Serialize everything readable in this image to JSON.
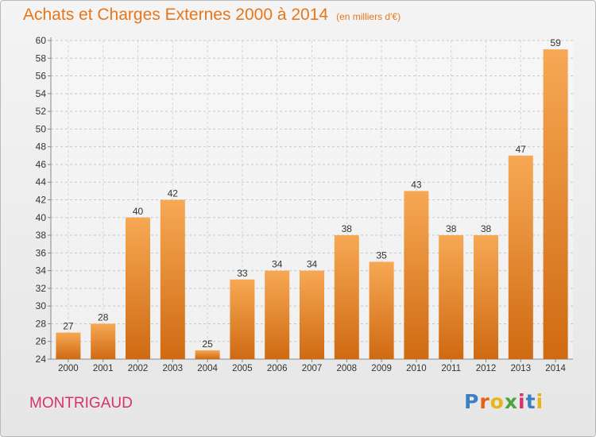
{
  "header": {
    "title": "Achats et Charges Externes 2000 à 2014",
    "unit": "(en milliers d'€)"
  },
  "footer": {
    "town": "MONTRIGAUD",
    "logo": "Proxiti",
    "logo_colors": [
      "#3d7fc4",
      "#e85f16",
      "#e8b417",
      "#4aa63a",
      "#d6336c",
      "#3d7fc4",
      "#e8b417"
    ]
  },
  "colors": {
    "bar_top": "#f7a854",
    "bar_bottom": "#cf6a12",
    "title": "#e8761a",
    "axis_text": "#333333"
  },
  "chart_data": {
    "type": "bar",
    "categories": [
      "2000",
      "2001",
      "2002",
      "2003",
      "2004",
      "2005",
      "2006",
      "2007",
      "2008",
      "2009",
      "2010",
      "2011",
      "2012",
      "2013",
      "2014"
    ],
    "values": [
      27,
      28,
      40,
      42,
      25,
      33,
      34,
      34,
      38,
      35,
      43,
      38,
      38,
      47,
      59
    ],
    "ylim": [
      24,
      60
    ],
    "yticks": [
      24,
      26,
      28,
      30,
      32,
      34,
      36,
      38,
      40,
      42,
      44,
      46,
      48,
      50,
      52,
      54,
      56,
      58,
      60
    ],
    "grid": true,
    "legend": "none"
  }
}
